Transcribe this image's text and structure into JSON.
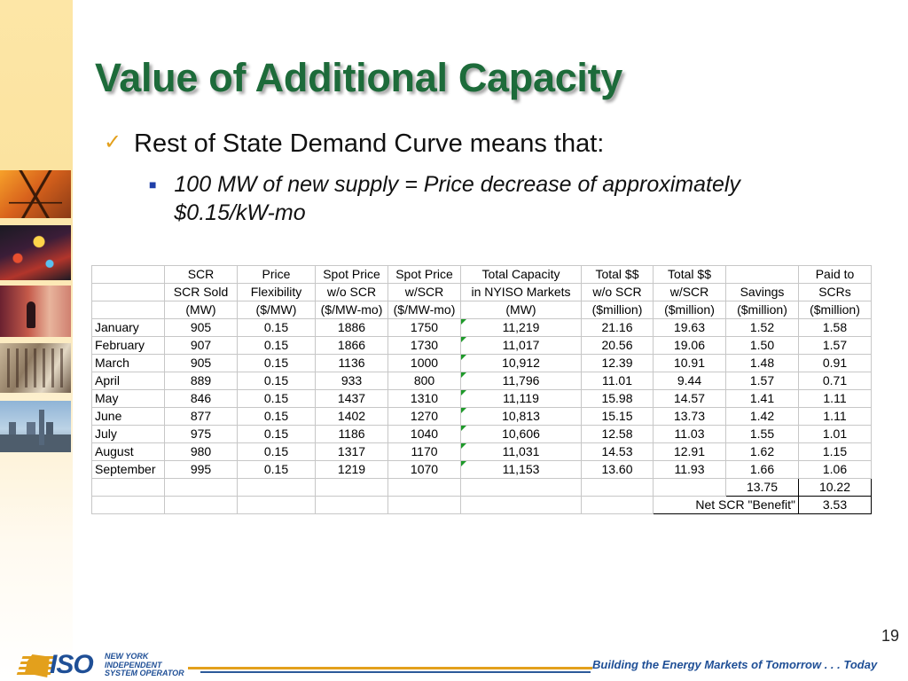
{
  "slide": {
    "title": "Value of Additional Capacity",
    "bullet1": "Rest of State Demand Curve means that:",
    "bullet2": "100 MW of new supply = Price decrease of approximately $0.15/kW-mo",
    "page_number": "19",
    "tagline": "Building the Energy Markets of Tomorrow . . . Today",
    "logo": {
      "mark": "ISO",
      "line1": "NEW YORK",
      "line2": "INDEPENDENT",
      "line3": "SYSTEM OPERATOR"
    }
  },
  "table": {
    "header_row1": [
      "",
      "SCR",
      "Price",
      "Spot Price",
      "Spot Price",
      "Total Capacity",
      "Total $$",
      "Total $$",
      "",
      "Paid to"
    ],
    "header_row2": [
      "",
      "SCR Sold",
      "Flexibility",
      "w/o SCR",
      "w/SCR",
      "in NYISO Markets",
      "w/o SCR",
      "w/SCR",
      "Savings",
      "SCRs"
    ],
    "header_row3": [
      "",
      "(MW)",
      "($/MW)",
      "($/MW-mo)",
      "($/MW-mo)",
      "(MW)",
      "($million)",
      "($million)",
      "($million)",
      "($million)"
    ],
    "rows": [
      [
        "January",
        "905",
        "0.15",
        "1886",
        "1750",
        "11,219",
        "21.16",
        "19.63",
        "1.52",
        "1.58"
      ],
      [
        "February",
        "907",
        "0.15",
        "1866",
        "1730",
        "11,017",
        "20.56",
        "19.06",
        "1.50",
        "1.57"
      ],
      [
        "March",
        "905",
        "0.15",
        "1136",
        "1000",
        "10,912",
        "12.39",
        "10.91",
        "1.48",
        "0.91"
      ],
      [
        "April",
        "889",
        "0.15",
        "933",
        "800",
        "11,796",
        "11.01",
        "9.44",
        "1.57",
        "0.71"
      ],
      [
        "May",
        "846",
        "0.15",
        "1437",
        "1310",
        "11,119",
        "15.98",
        "14.57",
        "1.41",
        "1.11"
      ],
      [
        "June",
        "877",
        "0.15",
        "1402",
        "1270",
        "10,813",
        "15.15",
        "13.73",
        "1.42",
        "1.11"
      ],
      [
        "July",
        "975",
        "0.15",
        "1186",
        "1040",
        "10,606",
        "12.58",
        "11.03",
        "1.55",
        "1.01"
      ],
      [
        "August",
        "980",
        "0.15",
        "1317",
        "1170",
        "11,031",
        "14.53",
        "12.91",
        "1.62",
        "1.15"
      ],
      [
        "September",
        "995",
        "0.15",
        "1219",
        "1070",
        "11,153",
        "13.60",
        "11.93",
        "1.66",
        "1.06"
      ]
    ],
    "totals": {
      "savings": "13.75",
      "paid": "10.22"
    },
    "net": {
      "label": "Net SCR \"Benefit\"",
      "value": "3.53"
    }
  }
}
